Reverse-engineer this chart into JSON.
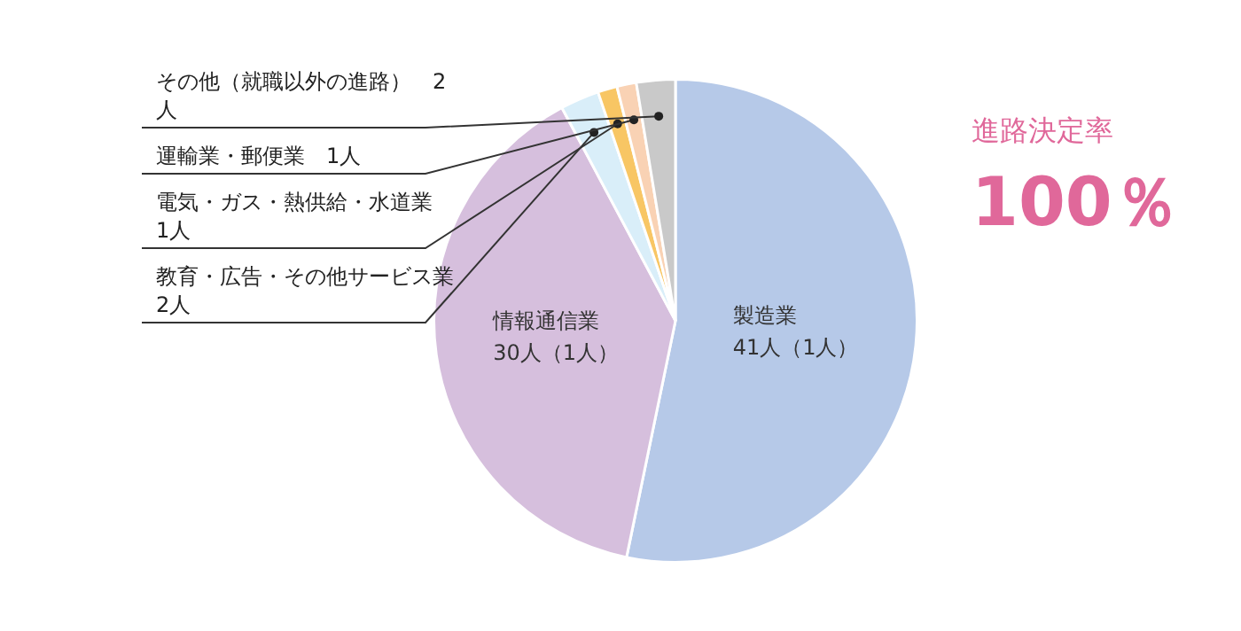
{
  "chart_data": {
    "type": "pie",
    "categories": [
      "製造業",
      "情報通信業",
      "教育・広告・その他サービス業",
      "電気・ガス・熱供給・水道業",
      "運輸業・郵便業",
      "その他（就職以外の進路）"
    ],
    "values": [
      41,
      30,
      2,
      1,
      1,
      2
    ],
    "colors": [
      "#b6c9e8",
      "#d6bfdd",
      "#d9eef9",
      "#f8c664",
      "#f9d2b4",
      "#c9c9c9"
    ],
    "value_labels": [
      "41人（1人）",
      "30人（1人）",
      "2人",
      "1人",
      "1人",
      "2人"
    ],
    "annotations": [
      "進路決定率",
      "100％"
    ]
  }
}
